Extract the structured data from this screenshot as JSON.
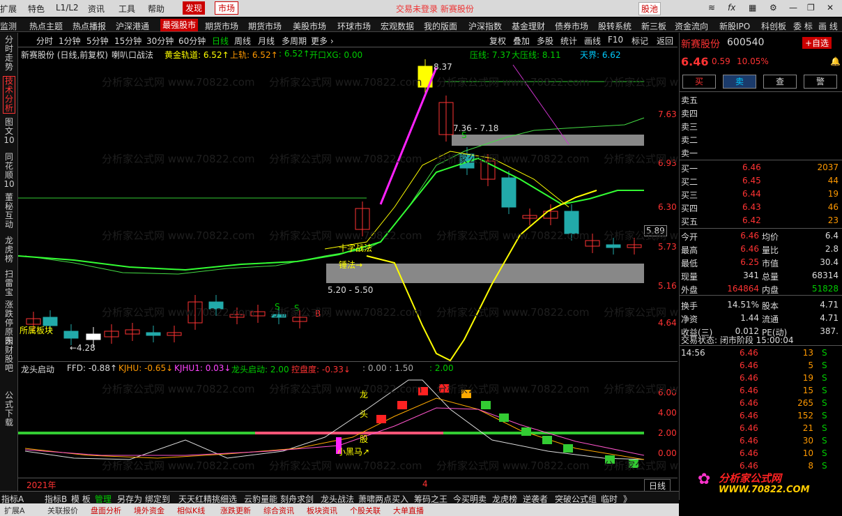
{
  "topbar": {
    "items": [
      "扩展",
      "特色",
      "L1/L2",
      "资讯",
      "工具",
      "帮助"
    ],
    "discover": "发现",
    "market": "市场",
    "trade_hint": "交易未登录  新赛股份",
    "pool": "股池"
  },
  "navbar": {
    "items": [
      "监测",
      "热点主题",
      "热点播报",
      "沪深港通",
      "最强股市",
      "期货市场",
      "期货市场",
      "美股市场",
      "环球市场",
      "宏观数据",
      "我的版面",
      "沪深指数",
      "基金理财",
      "债券市场",
      "股转系统",
      "新三板",
      "资金流向",
      "新股IPO",
      "科创板",
      "委 标",
      "画 线"
    ],
    "active_index": 4
  },
  "sidebar": {
    "items": [
      "分时走势",
      "技术分析",
      "图文10",
      "同花顺10",
      "董秘互动",
      "龙虎榜",
      "扫雷宝",
      "涨跌停原因",
      "东财股吧",
      "公式下载"
    ],
    "active_index": 1
  },
  "periods": {
    "items": [
      "分时",
      "1分钟",
      "5分钟",
      "15分钟",
      "30分钟",
      "60分钟",
      "日线",
      "周线",
      "月线",
      "多周期",
      "更多 ›"
    ],
    "active": "日线"
  },
  "chart_tools": [
    "复权",
    "叠加",
    "多股",
    "统计",
    "画线",
    "F10",
    "标记",
    "返回"
  ],
  "main_info": {
    "title": "新赛股份 (日线,前复权)",
    "indicator": "喇叭口战法",
    "gold_label": "黄金轨道: 6.52↑",
    "up_label": "上轨: 6.52↑",
    "up2_label": ": 6.52↑",
    "open_label": "开口XG: 0.00",
    "press_label": "压线: 7.37",
    "big_press_label": "大压线: 8.11",
    "sky_label": "天界: 6.62"
  },
  "price_axis": [
    "7.63",
    "6.93",
    "6.30",
    "5.73",
    "5.16",
    "4.64"
  ],
  "price_marker": "5.89",
  "annotations": {
    "high": "8.37",
    "zone1": "7.36 - 7.18",
    "zone2": "5.20 - 5.50",
    "low": "←4.28",
    "sector": "所属板块",
    "cross": "十字战法",
    "hammer": "锤法→",
    "s1": "S",
    "s2": "S",
    "s3": "S",
    "b1": "B"
  },
  "sub_info": {
    "title": "龙头启动",
    "ffd": "FFD: -0.88↑",
    "kjhu": "KJHU: -0.65↓",
    "kjhu1": "KJHU1: 0.03↓",
    "start": "龙头启动: 2.00",
    "ctrl": "控盘度: -0.33↓",
    "v1": ": 0.00 : 1.50",
    "v2": ": 2.00"
  },
  "sub_axis": [
    "6.00",
    "4.00",
    "2.00",
    "0.00"
  ],
  "sub_annotations": {
    "dragon": "龙",
    "head": "头",
    "stock": "股",
    "horse": "小黑马↗"
  },
  "time_axis": {
    "year": "2021年",
    "month": "4",
    "period": "日线"
  },
  "bottom_tabs": [
    "指标A",
    "指标B",
    "模 板",
    "管理",
    "另存为",
    "绑定到",
    "天天红精挑细选",
    "云豹量能",
    "刻舟求剑",
    "龙头战法",
    "萧啸两点买入",
    "筹码之王",
    "今买明卖",
    "龙虎榜",
    "逆袭者",
    "突破公式组",
    "临时",
    "》"
  ],
  "bottom_tabs2": [
    "扩展A",
    "关联报价",
    "盘面分析",
    "境外资金",
    "相似K线",
    "涨跌更新",
    "综合资讯",
    "板块资讯",
    "个股关联",
    "大单直播"
  ],
  "quote": {
    "name": "新赛股份",
    "code": "600540",
    "add_btn": "+自选",
    "price": "6.46",
    "change": "0.59",
    "pct": "10.05%",
    "buy": "买",
    "sell": "卖",
    "check": "查",
    "alert": "警",
    "asks": [
      "卖五",
      "卖四",
      "卖三",
      "卖二",
      "卖一"
    ],
    "bids": [
      [
        "买一",
        "6.46",
        "2037"
      ],
      [
        "买二",
        "6.45",
        "44"
      ],
      [
        "买三",
        "6.44",
        "19"
      ],
      [
        "买四",
        "6.43",
        "46"
      ],
      [
        "买五",
        "6.42",
        "23"
      ]
    ],
    "stats": [
      [
        "今开",
        "6.46",
        "均价",
        "6.4"
      ],
      [
        "最高",
        "6.46",
        "量比",
        "2.8"
      ],
      [
        "最低",
        "6.25",
        "市值",
        "30.4"
      ],
      [
        "现量",
        "341",
        "总量",
        "68314"
      ],
      [
        "外盘",
        "164864",
        "内盘",
        "51828"
      ],
      [
        "换手",
        "14.51%",
        "股本",
        "4.71"
      ],
      [
        "净资",
        "1.44",
        "流通",
        "4.71"
      ],
      [
        "收益(三)",
        "0.012",
        "PE(动)",
        "387."
      ]
    ],
    "trade_status": "交易状态: 闭市阶段 15:00:04",
    "ticks": [
      [
        "14:56",
        "6.46",
        "13",
        "S"
      ],
      [
        "",
        "6.46",
        "5",
        "S"
      ],
      [
        "",
        "6.46",
        "19",
        "S"
      ],
      [
        "",
        "6.46",
        "15",
        "S"
      ],
      [
        "",
        "6.46",
        "265",
        "S"
      ],
      [
        "",
        "6.46",
        "152",
        "S"
      ],
      [
        "",
        "6.46",
        "21",
        "S"
      ],
      [
        "",
        "6.46",
        "30",
        "S"
      ],
      [
        "",
        "6.46",
        "10",
        "S"
      ],
      [
        "",
        "6.46",
        "8",
        "S"
      ]
    ]
  },
  "logo": {
    "text": "分析家公式网",
    "url": "WWW.70822.COM"
  },
  "watermark": "分析家公式网 www.70822.com",
  "colors": {
    "up": "#ff3333",
    "down": "#00cccc",
    "accent": "#cc0000"
  }
}
